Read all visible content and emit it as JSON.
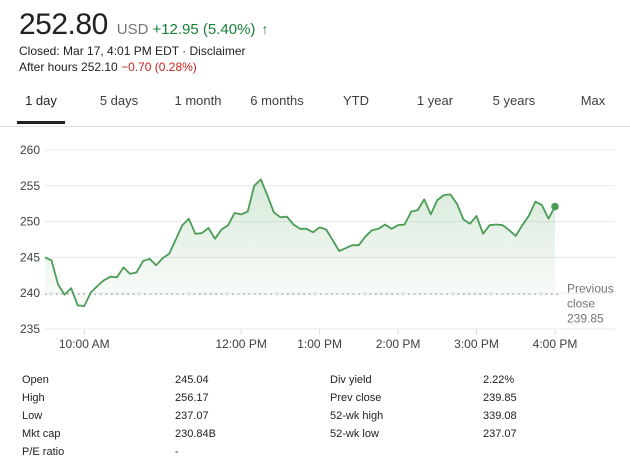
{
  "quote": {
    "price": "252.80",
    "currency": "USD",
    "change": "+12.95 (5.40%)",
    "arrow": "↑",
    "closed": "Closed: Mar 17, 4:01 PM EDT · Disclaimer",
    "after_hours_label": "After hours 252.10",
    "after_hours_change": "−0.70 (0.28%)",
    "positive_color": "#188038",
    "negative_color": "#c5221f"
  },
  "tabs": [
    "1 day",
    "5 days",
    "1 month",
    "6 months",
    "YTD",
    "1 year",
    "5 years",
    "Max"
  ],
  "active_tab": "1 day",
  "chart_data": {
    "type": "line",
    "title": "",
    "xlabel": "",
    "ylabel": "",
    "ylim": [
      235,
      262
    ],
    "xlim": [
      "9:30 AM",
      "4:00 PM"
    ],
    "y_ticks": [
      "260",
      "255",
      "250",
      "245",
      "240",
      "235"
    ],
    "x_ticks": [
      "10:00 AM",
      "12:00 PM",
      "1:00 PM",
      "2:00 PM",
      "3:00 PM",
      "4:00 PM"
    ],
    "previous_close": 239.85,
    "previous_close_label": [
      "Previous",
      "close",
      "239.85"
    ],
    "line_color": "#4b9d55",
    "grid": true,
    "series": [
      {
        "x": [
          "9:30 AM",
          "9:35 AM",
          "9:40 AM",
          "9:45 AM",
          "9:50 AM",
          "9:55 AM",
          "10:00 AM",
          "10:05 AM",
          "10:10 AM",
          "10:15 AM",
          "10:20 AM",
          "10:25 AM",
          "10:30 AM",
          "10:35 AM",
          "10:40 AM",
          "10:45 AM",
          "10:50 AM",
          "10:55 AM",
          "11:00 AM",
          "11:05 AM",
          "11:10 AM",
          "11:15 AM",
          "11:20 AM",
          "11:25 AM",
          "11:30 AM",
          "11:35 AM",
          "11:40 AM",
          "11:45 AM",
          "11:50 AM",
          "11:55 AM",
          "12:00 PM",
          "12:05 PM",
          "12:10 PM",
          "12:15 PM",
          "12:20 PM",
          "12:25 PM",
          "12:30 PM",
          "12:35 PM",
          "12:40 PM",
          "12:45 PM",
          "12:50 PM",
          "12:55 PM",
          "1:00 PM",
          "1:05 PM",
          "1:10 PM",
          "1:15 PM",
          "1:20 PM",
          "1:25 PM",
          "1:30 PM",
          "1:35 PM",
          "1:40 PM",
          "1:45 PM",
          "1:50 PM",
          "1:55 PM",
          "2:00 PM",
          "2:05 PM",
          "2:10 PM",
          "2:15 PM",
          "2:20 PM",
          "2:25 PM",
          "2:30 PM",
          "2:35 PM",
          "2:40 PM",
          "2:45 PM",
          "2:50 PM",
          "2:55 PM",
          "3:00 PM",
          "3:05 PM",
          "3:10 PM",
          "3:15 PM",
          "3:20 PM",
          "3:25 PM",
          "3:30 PM",
          "3:35 PM",
          "3:40 PM",
          "3:45 PM",
          "3:50 PM",
          "3:55 PM",
          "4:00 PM"
        ],
        "y": [
          245.0,
          244.6,
          241.2,
          239.8,
          240.7,
          238.3,
          238.2,
          240.1,
          241.0,
          241.8,
          242.3,
          242.2,
          243.6,
          242.7,
          242.9,
          244.5,
          244.8,
          243.9,
          244.9,
          245.5,
          247.5,
          249.5,
          250.4,
          248.3,
          248.4,
          249.1,
          247.6,
          248.9,
          249.5,
          251.2,
          251.0,
          251.4,
          255.0,
          255.9,
          253.7,
          251.3,
          250.6,
          250.7,
          249.6,
          249.0,
          249.0,
          248.5,
          249.2,
          248.9,
          247.4,
          245.9,
          246.3,
          246.7,
          246.7,
          247.9,
          248.8,
          249.0,
          249.6,
          249.0,
          249.5,
          249.6,
          251.4,
          251.6,
          253.1,
          251.0,
          253.0,
          253.7,
          253.8,
          252.5,
          250.3,
          249.7,
          250.8,
          248.3,
          249.5,
          249.6,
          249.5,
          248.8,
          248.0,
          249.5,
          250.8,
          252.8,
          252.3,
          250.4,
          252.1
        ]
      }
    ]
  },
  "stats": [
    {
      "label": "Open",
      "value": "245.04",
      "label2": "Div yield",
      "value2": "2.22%"
    },
    {
      "label": "High",
      "value": "256.17",
      "label2": "Prev close",
      "value2": "239.85"
    },
    {
      "label": "Low",
      "value": "237.07",
      "label2": "52-wk high",
      "value2": "339.08"
    },
    {
      "label": "Mkt cap",
      "value": "230.84B",
      "label2": "52-wk low",
      "value2": "237.07"
    },
    {
      "label": "P/E ratio",
      "value": "-",
      "label2": "",
      "value2": ""
    }
  ]
}
